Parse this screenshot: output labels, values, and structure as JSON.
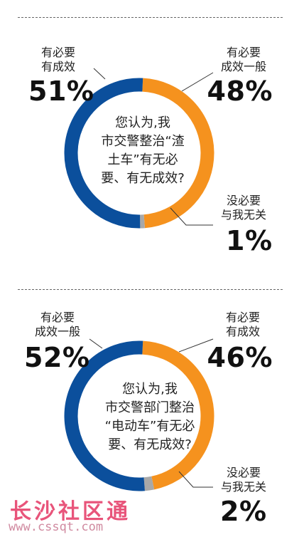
{
  "chart_data": [
    {
      "type": "pie",
      "question": [
        "您认为,我",
        "市交警整治“渣",
        "土车”有无必",
        "要、有无成效?"
      ],
      "slices": [
        {
          "label": [
            "有必要",
            "成效一般"
          ],
          "value": 48,
          "display": "48%",
          "color": "#f5921e"
        },
        {
          "label": [
            "没必要",
            "与我无关"
          ],
          "value": 1,
          "display": "1%",
          "color": "#a8a8a8"
        },
        {
          "label": [
            "有必要",
            "有成效"
          ],
          "value": 51,
          "display": "51%",
          "color": "#0b4f9c"
        }
      ]
    },
    {
      "type": "pie",
      "question": [
        "您认为,我",
        "市交警部门整治",
        "“电动车”有无必",
        "要、有无成效?"
      ],
      "slices": [
        {
          "label": [
            "有必要",
            "有成效"
          ],
          "value": 46,
          "display": "46%",
          "color": "#f5921e"
        },
        {
          "label": [
            "没必要",
            "与我无关"
          ],
          "value": 2,
          "display": "2%",
          "color": "#a8a8a8"
        },
        {
          "label": [
            "有必要",
            "成效一般"
          ],
          "value": 52,
          "display": "52%",
          "color": "#0b4f9c"
        }
      ]
    }
  ],
  "watermark": {
    "text": "长沙社区通",
    "url": "www.cssqt.com"
  }
}
